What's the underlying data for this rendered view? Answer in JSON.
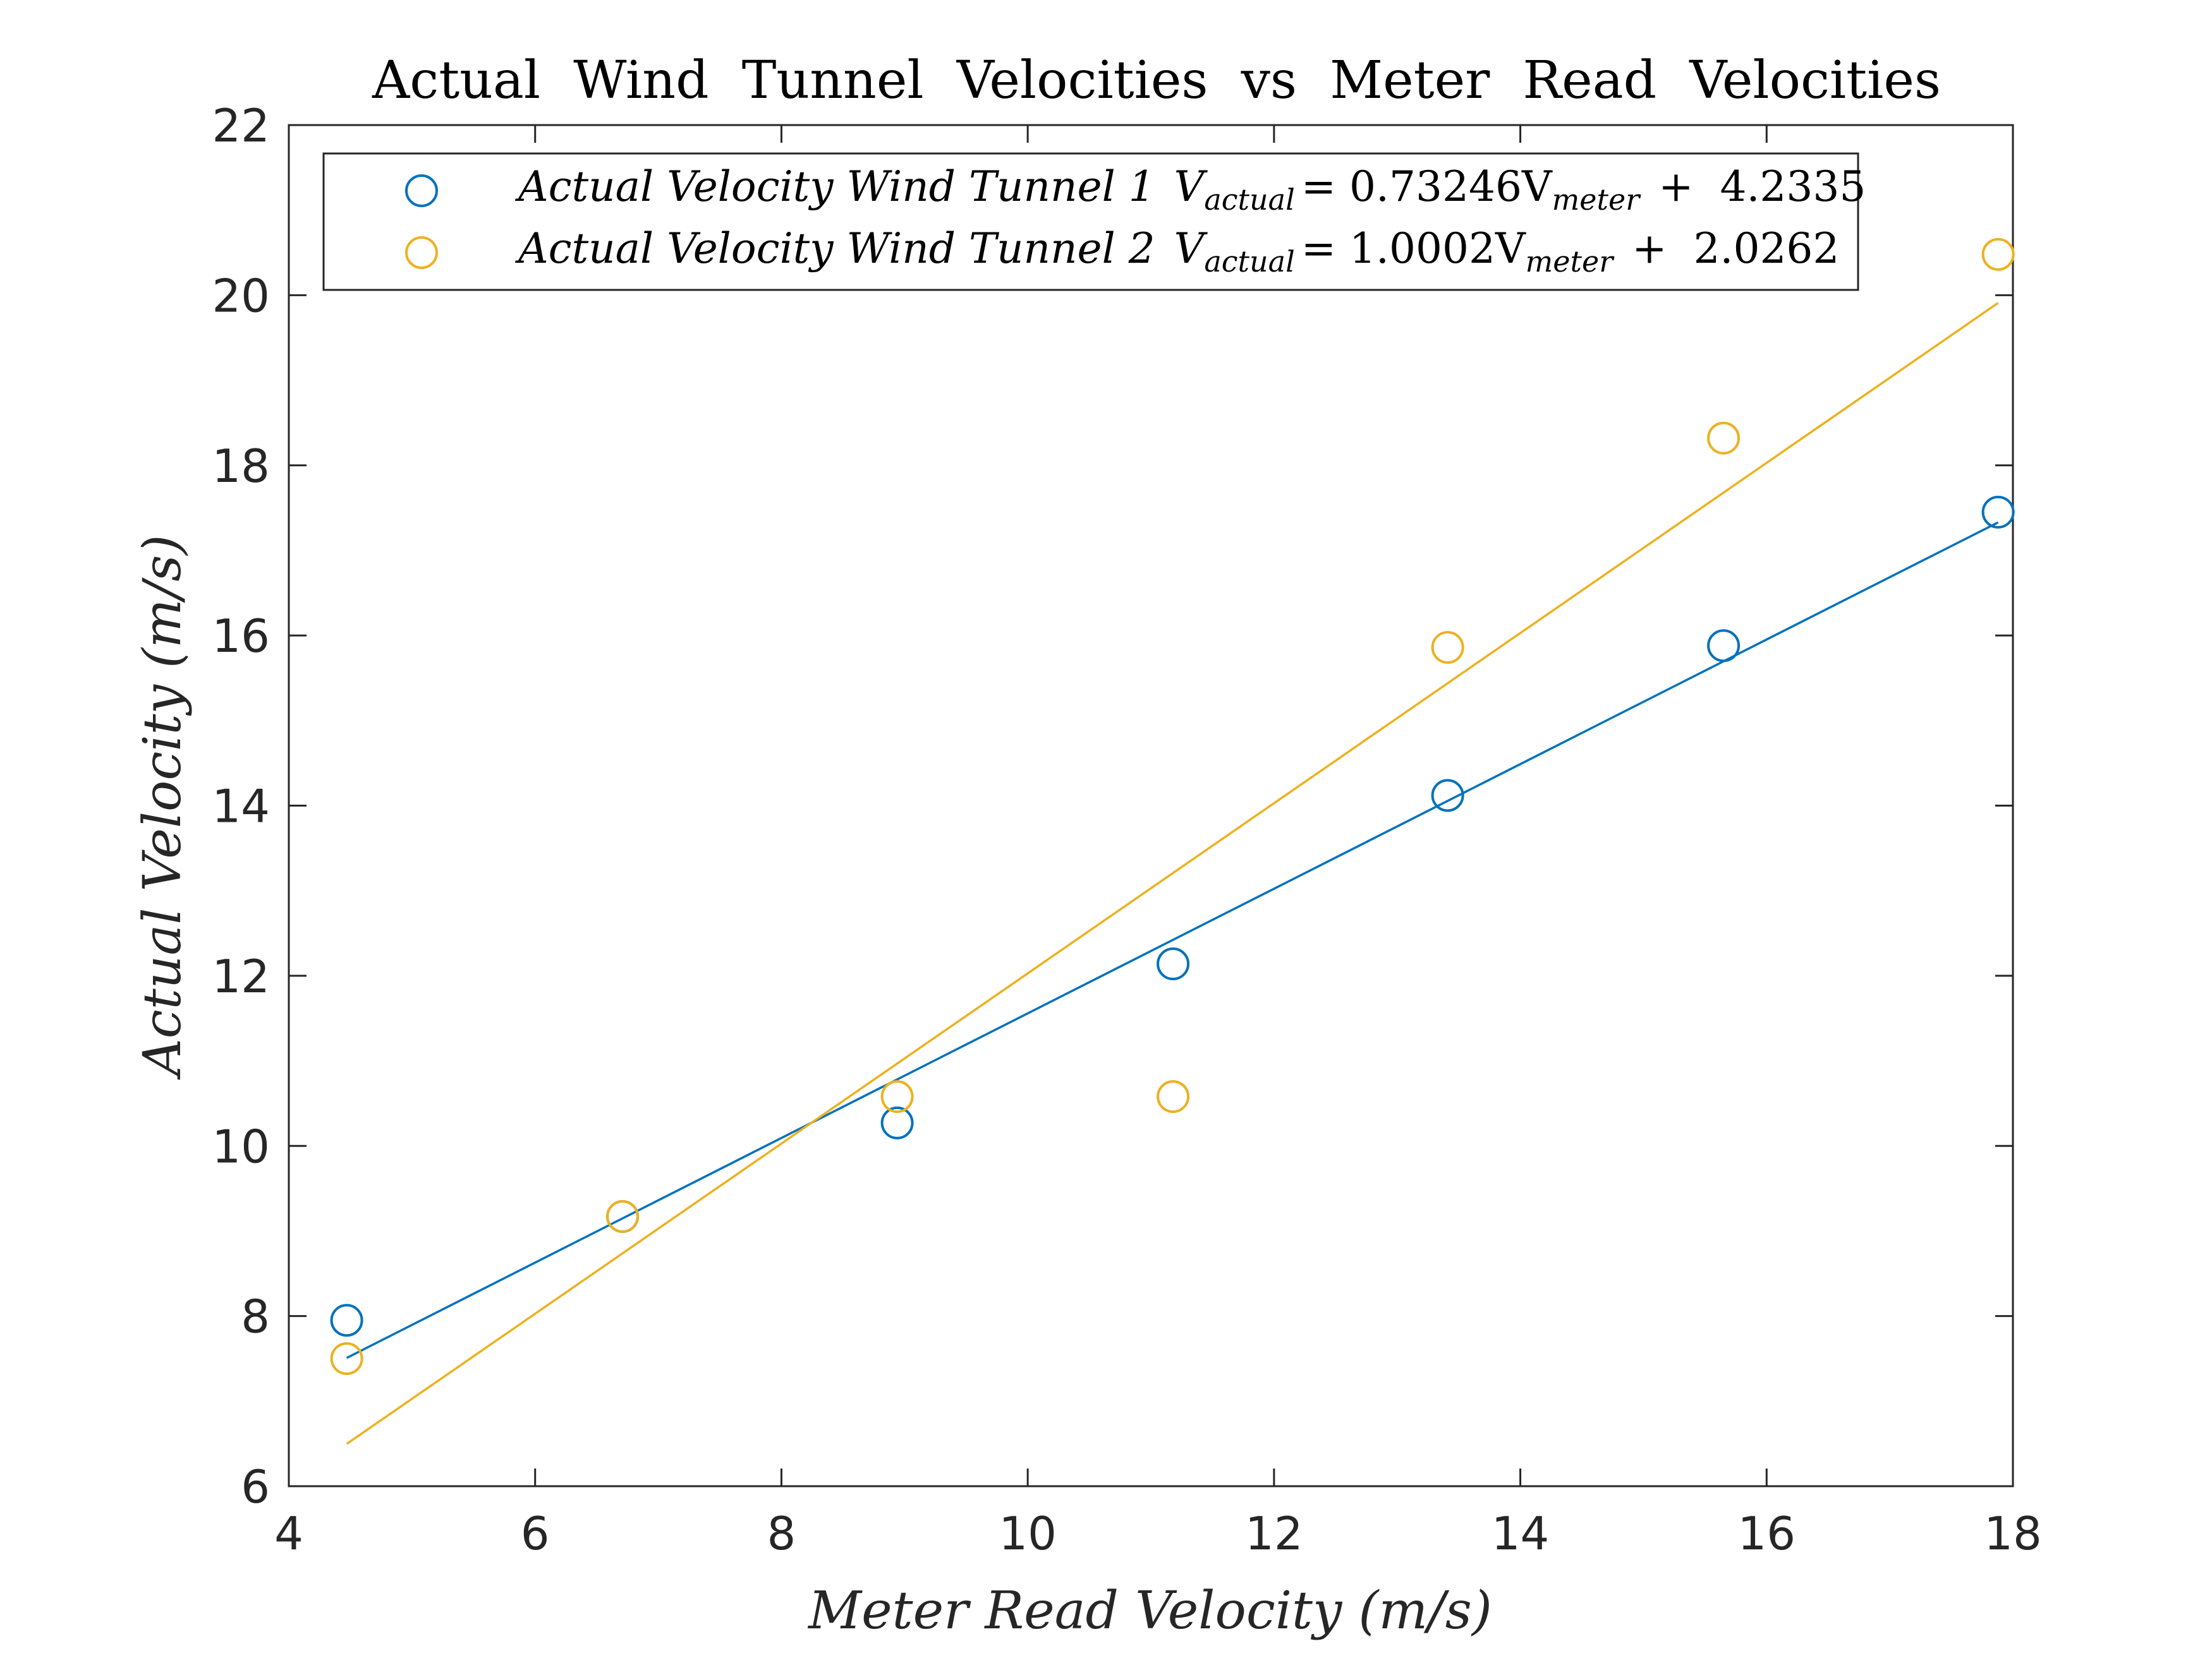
{
  "chart_data": {
    "type": "scatter",
    "title": "Actual  Wind  Tunnel  Velocities  vs  Meter  Read  Velocities",
    "xlabel": "Meter Read Velocity (m/s)",
    "ylabel": "Actual Velocity (m/s)",
    "xlim": [
      4,
      18
    ],
    "ylim": [
      6,
      22
    ],
    "xticks": [
      4,
      6,
      8,
      10,
      12,
      14,
      16,
      18
    ],
    "yticks": [
      6,
      8,
      10,
      12,
      14,
      16,
      18,
      20,
      22
    ],
    "grid": false,
    "legend_position": "top",
    "series": [
      {
        "name": "Actual Velocity Wind Tunnel 1",
        "equation_lhs": "V",
        "equation_lhs_sub": "actual",
        "equation_mid": "= 0.73246V",
        "equation_mid_sub": "meter",
        "equation_rhs": "+  4.2335",
        "color": "#0072BD",
        "x": [
          4.47,
          6.71,
          8.94,
          11.18,
          13.41,
          15.65,
          17.88
        ],
        "y": [
          7.95,
          9.17,
          10.27,
          12.14,
          14.12,
          15.88,
          17.45
        ],
        "fit": {
          "slope": 0.73246,
          "intercept": 4.2335
        }
      },
      {
        "name": "Actual Velocity Wind Tunnel 2",
        "equation_lhs": "V",
        "equation_lhs_sub": "actual",
        "equation_mid": "= 1.0002V",
        "equation_mid_sub": "meter",
        "equation_rhs": "+  2.0262",
        "color": "#EDB120",
        "x": [
          4.47,
          6.71,
          8.94,
          11.18,
          13.41,
          15.65,
          17.88
        ],
        "y": [
          7.5,
          9.17,
          10.58,
          10.58,
          15.86,
          18.32,
          20.48
        ],
        "fit": {
          "slope": 1.0002,
          "intercept": 2.0262
        }
      }
    ]
  }
}
